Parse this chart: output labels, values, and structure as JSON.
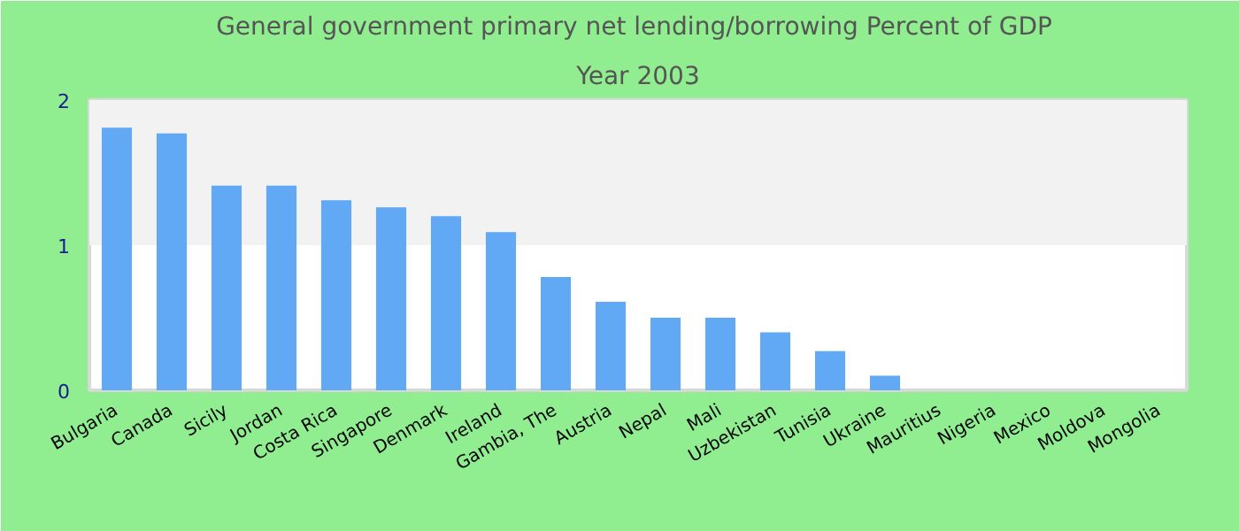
{
  "chart_data": {
    "type": "bar",
    "title": "General government primary net lending/borrowing  Percent of GDP",
    "subtitle": "Year 2003",
    "categories": [
      "Bulgaria",
      "Canada",
      "Sicily",
      "Jordan",
      "Costa Rica",
      "Singapore",
      "Denmark",
      "Ireland",
      "Gambia, The",
      "Austria",
      "Nepal",
      "Mali",
      "Uzbekistan",
      "Tunisia",
      "Ukraine",
      "Mauritius",
      "Nigeria",
      "Mexico",
      "Moldova",
      "Mongolia"
    ],
    "values": [
      1.81,
      1.77,
      1.41,
      1.41,
      1.31,
      1.26,
      1.2,
      1.09,
      0.78,
      0.61,
      0.5,
      0.5,
      0.4,
      0.27,
      0.1,
      null,
      null,
      null,
      null,
      null
    ],
    "color": "#62a9f5",
    "ylim": [
      0,
      2
    ],
    "yticks": [
      0,
      1,
      2
    ],
    "grid": false,
    "bands": [
      {
        "axis": "y",
        "from": 1,
        "to": 2,
        "color": "#f2f2f2"
      }
    ]
  }
}
